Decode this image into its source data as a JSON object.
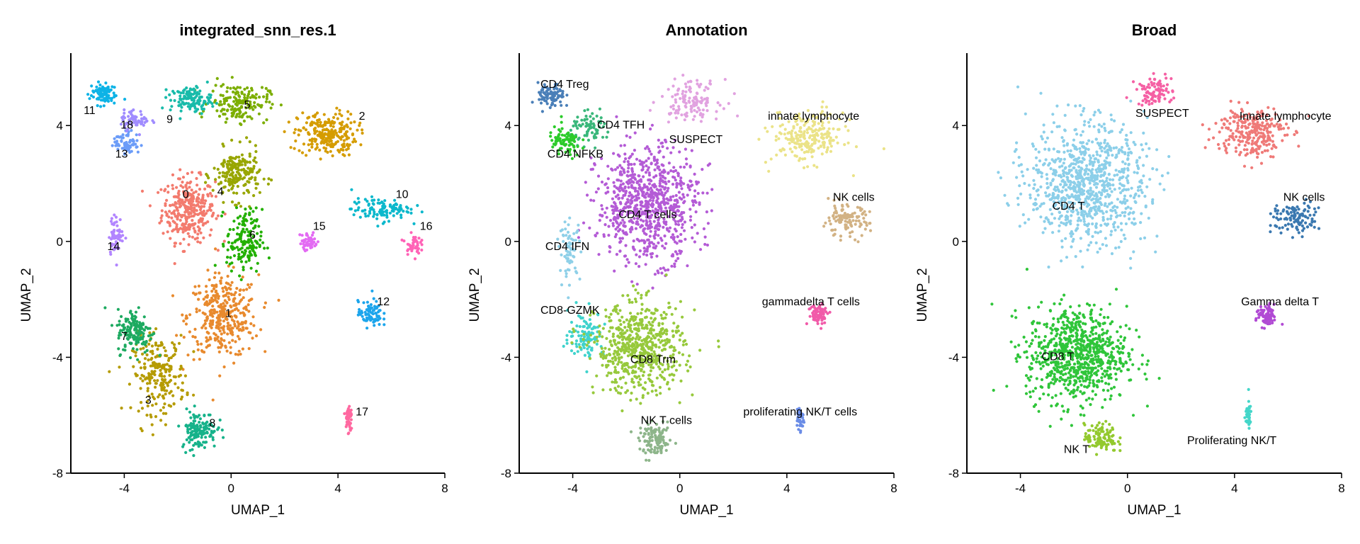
{
  "chart_data": [
    {
      "type": "scatter",
      "title": "integrated_snn_res.1",
      "xlabel": "UMAP_1",
      "ylabel": "UMAP_2",
      "xlim": [
        -6,
        8
      ],
      "ylim": [
        -8,
        6.5
      ],
      "xticks": [
        "-4",
        "0",
        "4",
        "8"
      ],
      "yticks": [
        "-8",
        "-4",
        "0",
        "4"
      ],
      "grid": false,
      "legend": "none",
      "clusters": [
        {
          "name": "0",
          "color": "#F37B6E",
          "center": [
            -1.6,
            1.1
          ],
          "spread": [
            0.9,
            1.0
          ],
          "n": 320,
          "label_pos": [
            -1.7,
            1.6
          ]
        },
        {
          "name": "1",
          "color": "#E88A2E",
          "center": [
            -0.3,
            -2.6
          ],
          "spread": [
            1.2,
            1.3
          ],
          "n": 360,
          "label_pos": [
            -0.1,
            -2.5
          ]
        },
        {
          "name": "2",
          "color": "#D59C00",
          "center": [
            3.6,
            3.7
          ],
          "spread": [
            1.0,
            0.7
          ],
          "n": 240,
          "label_pos": [
            4.9,
            4.3
          ]
        },
        {
          "name": "3",
          "color": "#B59B00",
          "center": [
            -2.7,
            -4.6
          ],
          "spread": [
            0.9,
            1.2
          ],
          "n": 220,
          "label_pos": [
            -3.1,
            -5.5
          ]
        },
        {
          "name": "4",
          "color": "#98A600",
          "center": [
            0.2,
            2.3
          ],
          "spread": [
            0.8,
            0.8
          ],
          "n": 200,
          "label_pos": [
            -0.4,
            1.7
          ]
        },
        {
          "name": "5",
          "color": "#7CAE00",
          "center": [
            0.3,
            4.8
          ],
          "spread": [
            1.0,
            0.6
          ],
          "n": 170,
          "label_pos": [
            0.6,
            4.7
          ]
        },
        {
          "name": "6",
          "color": "#22B000",
          "center": [
            0.5,
            0.0
          ],
          "spread": [
            0.6,
            1.0
          ],
          "n": 160,
          "label_pos": [
            0.8,
            0.2
          ]
        },
        {
          "name": "7",
          "color": "#1DAA60",
          "center": [
            -3.6,
            -3.1
          ],
          "spread": [
            0.6,
            0.7
          ],
          "n": 150,
          "label_pos": [
            -4.0,
            -3.3
          ]
        },
        {
          "name": "8",
          "color": "#16B28A",
          "center": [
            -1.2,
            -6.5
          ],
          "spread": [
            0.6,
            0.6
          ],
          "n": 140,
          "label_pos": [
            -0.7,
            -6.3
          ]
        },
        {
          "name": "9",
          "color": "#19BBAA",
          "center": [
            -1.5,
            4.9
          ],
          "spread": [
            0.7,
            0.4
          ],
          "n": 120,
          "label_pos": [
            -2.3,
            4.2
          ]
        },
        {
          "name": "10",
          "color": "#0CB8CC",
          "center": [
            5.6,
            1.1
          ],
          "spread": [
            1.0,
            0.35
          ],
          "n": 110,
          "label_pos": [
            6.4,
            1.6
          ]
        },
        {
          "name": "11",
          "color": "#0DB3E6",
          "center": [
            -4.8,
            5.1
          ],
          "spread": [
            0.45,
            0.35
          ],
          "n": 90,
          "label_pos": [
            -5.3,
            4.5
          ]
        },
        {
          "name": "12",
          "color": "#1CA5EC",
          "center": [
            5.2,
            -2.5
          ],
          "spread": [
            0.4,
            0.4
          ],
          "n": 80,
          "label_pos": [
            5.7,
            -2.1
          ]
        },
        {
          "name": "13",
          "color": "#6B9CF8",
          "center": [
            -3.9,
            3.4
          ],
          "spread": [
            0.45,
            0.35
          ],
          "n": 70,
          "label_pos": [
            -4.1,
            3.0
          ]
        },
        {
          "name": "14",
          "color": "#B285FF",
          "center": [
            -4.3,
            0.2
          ],
          "spread": [
            0.25,
            0.6
          ],
          "n": 60,
          "label_pos": [
            -4.4,
            -0.2
          ]
        },
        {
          "name": "15",
          "color": "#E36BF3",
          "center": [
            2.9,
            0.0
          ],
          "spread": [
            0.3,
            0.3
          ],
          "n": 50,
          "label_pos": [
            3.3,
            0.5
          ]
        },
        {
          "name": "16",
          "color": "#FF63B7",
          "center": [
            6.8,
            -0.1
          ],
          "spread": [
            0.25,
            0.3
          ],
          "n": 45,
          "label_pos": [
            7.3,
            0.5
          ]
        },
        {
          "name": "17",
          "color": "#FF68A0",
          "center": [
            4.4,
            -6.1
          ],
          "spread": [
            0.12,
            0.5
          ],
          "n": 45,
          "label_pos": [
            4.9,
            -5.9
          ]
        },
        {
          "name": "18",
          "color": "#A08CFF",
          "center": [
            -3.6,
            4.2
          ],
          "spread": [
            0.5,
            0.3
          ],
          "n": 60,
          "label_pos": [
            -3.9,
            4.0
          ]
        }
      ]
    },
    {
      "type": "scatter",
      "title": "Annotation",
      "xlabel": "UMAP_1",
      "ylabel": "UMAP_2",
      "xlim": [
        -6,
        8
      ],
      "ylim": [
        -8,
        6.5
      ],
      "xticks": [
        "-4",
        "0",
        "4",
        "8"
      ],
      "yticks": [
        "-8",
        "-4",
        "0",
        "4"
      ],
      "grid": false,
      "legend": "none",
      "clusters": [
        {
          "name": "CD4 Treg",
          "color": "#4A7FB8",
          "center": [
            -4.8,
            5.0
          ],
          "spread": [
            0.45,
            0.4
          ],
          "n": 90,
          "label_pos": [
            -4.3,
            5.4
          ]
        },
        {
          "name": "CD4 TFH",
          "color": "#39B77A",
          "center": [
            -3.3,
            3.9
          ],
          "spread": [
            0.7,
            0.45
          ],
          "n": 80,
          "label_pos": [
            -2.2,
            4.0
          ]
        },
        {
          "name": "CD4 NFKB",
          "color": "#2CCB2A",
          "center": [
            -4.3,
            3.4
          ],
          "spread": [
            0.55,
            0.5
          ],
          "n": 80,
          "label_pos": [
            -3.9,
            3.0
          ]
        },
        {
          "name": "SUSPECT",
          "color": "#E1A2E0",
          "center": [
            0.4,
            4.9
          ],
          "spread": [
            1.0,
            0.6
          ],
          "n": 130,
          "label_pos": [
            0.6,
            3.5
          ]
        },
        {
          "name": "innate lymphocyte",
          "color": "#EBE388",
          "center": [
            4.8,
            3.6
          ],
          "spread": [
            1.2,
            0.8
          ],
          "n": 240,
          "label_pos": [
            5.0,
            4.3
          ]
        },
        {
          "name": "CD4 T cells",
          "color": "#B45BD6",
          "center": [
            -1.2,
            1.3
          ],
          "spread": [
            1.7,
            1.8
          ],
          "n": 800,
          "label_pos": [
            -1.2,
            0.9
          ]
        },
        {
          "name": "NK cells",
          "color": "#D2B284",
          "center": [
            6.2,
            0.7
          ],
          "spread": [
            0.8,
            0.5
          ],
          "n": 110,
          "label_pos": [
            6.5,
            1.5
          ]
        },
        {
          "name": "CD4 IFN",
          "color": "#8FD0E8",
          "center": [
            -4.1,
            -0.3
          ],
          "spread": [
            0.35,
            0.9
          ],
          "n": 70,
          "label_pos": [
            -4.2,
            -0.2
          ]
        },
        {
          "name": "gammadelta T cells",
          "color": "#F15BA9",
          "center": [
            5.2,
            -2.5
          ],
          "spread": [
            0.35,
            0.35
          ],
          "n": 75,
          "label_pos": [
            4.9,
            -2.1
          ]
        },
        {
          "name": "CD8-GZMK",
          "color": "#40D3CD",
          "center": [
            -3.5,
            -3.2
          ],
          "spread": [
            0.6,
            0.7
          ],
          "n": 110,
          "label_pos": [
            -4.1,
            -2.4
          ]
        },
        {
          "name": "CD8 Trm",
          "color": "#97C93C",
          "center": [
            -1.5,
            -3.7
          ],
          "spread": [
            1.5,
            1.4
          ],
          "n": 620,
          "label_pos": [
            -1.0,
            -4.1
          ]
        },
        {
          "name": "proliferating NK/T cells",
          "color": "#6A8CE6",
          "center": [
            4.5,
            -6.1
          ],
          "spread": [
            0.12,
            0.45
          ],
          "n": 40,
          "label_pos": [
            4.5,
            -5.9
          ]
        },
        {
          "name": "NK T cells",
          "color": "#8DB58A",
          "center": [
            -0.9,
            -6.9
          ],
          "spread": [
            0.55,
            0.5
          ],
          "n": 120,
          "label_pos": [
            -0.5,
            -6.2
          ]
        }
      ]
    },
    {
      "type": "scatter",
      "title": "Broad",
      "xlabel": "UMAP_1",
      "ylabel": "UMAP_2",
      "xlim": [
        -6,
        8
      ],
      "ylim": [
        -8,
        6.5
      ],
      "xticks": [
        "-4",
        "0",
        "4",
        "8"
      ],
      "yticks": [
        "-8",
        "-4",
        "0",
        "4"
      ],
      "grid": false,
      "legend": "none",
      "clusters": [
        {
          "name": "SUSPECT",
          "color": "#F560A4",
          "center": [
            1.0,
            5.2
          ],
          "spread": [
            0.6,
            0.45
          ],
          "n": 90,
          "label_pos": [
            1.3,
            4.4
          ]
        },
        {
          "name": "Innate lymphocyte",
          "color": "#EF7A78",
          "center": [
            4.6,
            3.8
          ],
          "spread": [
            1.2,
            0.8
          ],
          "n": 260,
          "label_pos": [
            5.9,
            4.3
          ]
        },
        {
          "name": "CD4 T",
          "color": "#8CCFE9",
          "center": [
            -1.5,
            2.0
          ],
          "spread": [
            2.0,
            1.9
          ],
          "n": 900,
          "label_pos": [
            -2.2,
            1.2
          ]
        },
        {
          "name": "NK cells",
          "color": "#3A78B0",
          "center": [
            6.3,
            0.8
          ],
          "spread": [
            0.8,
            0.5
          ],
          "n": 110,
          "label_pos": [
            6.6,
            1.5
          ]
        },
        {
          "name": "Gamma delta T",
          "color": "#B14AD4",
          "center": [
            5.2,
            -2.6
          ],
          "spread": [
            0.35,
            0.35
          ],
          "n": 75,
          "label_pos": [
            5.7,
            -2.1
          ]
        },
        {
          "name": "CD8 T",
          "color": "#2FC53A",
          "center": [
            -1.9,
            -3.9
          ],
          "spread": [
            1.7,
            1.5
          ],
          "n": 800,
          "label_pos": [
            -2.6,
            -4.0
          ]
        },
        {
          "name": "Proliferating NK/T",
          "color": "#44D6C9",
          "center": [
            4.5,
            -6.0
          ],
          "spread": [
            0.12,
            0.45
          ],
          "n": 40,
          "label_pos": [
            3.9,
            -6.9
          ]
        },
        {
          "name": "NK T",
          "color": "#93C92E",
          "center": [
            -1.0,
            -6.8
          ],
          "spread": [
            0.55,
            0.45
          ],
          "n": 110,
          "label_pos": [
            -1.9,
            -7.2
          ]
        }
      ]
    }
  ]
}
